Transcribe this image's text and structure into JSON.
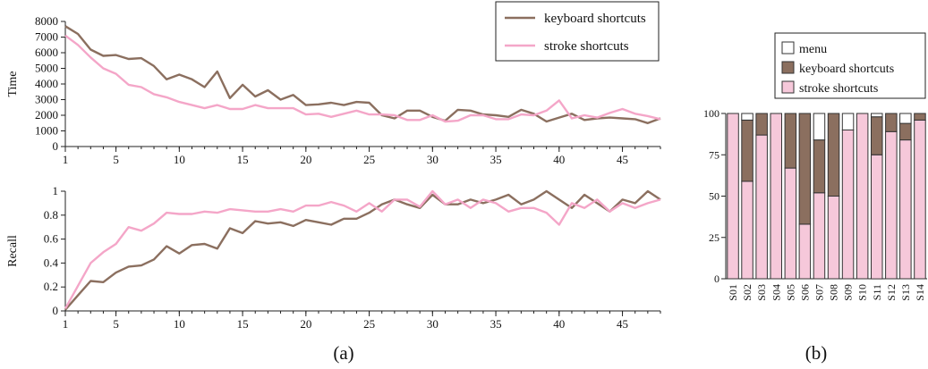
{
  "colors": {
    "keyboard": "#8b6f5f",
    "stroke": "#f4a6c8",
    "bar_stroke": "#f6c8da",
    "bar_keyboard": "#8b6f5f",
    "bar_menu": "#ffffff",
    "axis": "#222222"
  },
  "captions": {
    "a": "(a)",
    "b": "(b)"
  },
  "chart_data": [
    {
      "type": "line",
      "ylabel": "Time",
      "xlim": [
        1,
        48
      ],
      "ylim": [
        0,
        8000
      ],
      "xticks": [
        1,
        5,
        10,
        15,
        20,
        25,
        30,
        35,
        40,
        45
      ],
      "yticks": [
        0,
        1000,
        2000,
        3000,
        4000,
        5000,
        6000,
        7000,
        8000
      ],
      "legend": {
        "placement": "top-right",
        "entries": [
          "keyboard shortcuts",
          "stroke shortcuts"
        ]
      },
      "x": [
        1,
        2,
        3,
        4,
        5,
        6,
        7,
        8,
        9,
        10,
        11,
        12,
        13,
        14,
        15,
        16,
        17,
        18,
        19,
        20,
        21,
        22,
        23,
        24,
        25,
        26,
        27,
        28,
        29,
        30,
        31,
        32,
        33,
        34,
        35,
        36,
        37,
        38,
        39,
        40,
        41,
        42,
        43,
        44,
        45,
        46,
        47,
        48
      ],
      "series": [
        {
          "name": "keyboard shortcuts",
          "color": "#8b6f5f",
          "values": [
            7700,
            7200,
            6200,
            5800,
            5850,
            5600,
            5650,
            5150,
            4300,
            4600,
            4300,
            3800,
            4800,
            3100,
            3950,
            3200,
            3600,
            3000,
            3300,
            2650,
            2700,
            2800,
            2650,
            2850,
            2800,
            2000,
            1800,
            2300,
            2300,
            1900,
            1650,
            2350,
            2300,
            2050,
            2000,
            1900,
            2350,
            2100,
            1600,
            1850,
            2100,
            1700,
            1800,
            1850,
            1800,
            1750,
            1500,
            1800
          ]
        },
        {
          "name": "stroke shortcuts",
          "color": "#f4a6c8",
          "values": [
            7100,
            6500,
            5700,
            5000,
            4650,
            3950,
            3800,
            3350,
            3150,
            2850,
            2650,
            2450,
            2650,
            2400,
            2400,
            2650,
            2450,
            2450,
            2450,
            2050,
            2100,
            1900,
            2100,
            2300,
            2050,
            2050,
            2000,
            1700,
            1700,
            2000,
            1600,
            1650,
            2000,
            2000,
            1750,
            1750,
            2050,
            2000,
            2300,
            2950,
            1800,
            2000,
            1850,
            2150,
            2400,
            2100,
            1950,
            1750
          ]
        }
      ]
    },
    {
      "type": "line",
      "ylabel": "Recall",
      "xlim": [
        1,
        48
      ],
      "ylim": [
        0,
        1
      ],
      "xticks": [
        1,
        5,
        10,
        15,
        20,
        25,
        30,
        35,
        40,
        45
      ],
      "yticks": [
        "0",
        "0.2",
        "0.4",
        "0.6",
        "0.8",
        "1"
      ],
      "x": [
        1,
        2,
        3,
        4,
        5,
        6,
        7,
        8,
        9,
        10,
        11,
        12,
        13,
        14,
        15,
        16,
        17,
        18,
        19,
        20,
        21,
        22,
        23,
        24,
        25,
        26,
        27,
        28,
        29,
        30,
        31,
        32,
        33,
        34,
        35,
        36,
        37,
        38,
        39,
        40,
        41,
        42,
        43,
        44,
        45,
        46,
        47,
        48
      ],
      "series": [
        {
          "name": "keyboard shortcuts",
          "color": "#8b6f5f",
          "values": [
            0.01,
            0.13,
            0.25,
            0.24,
            0.32,
            0.37,
            0.38,
            0.43,
            0.54,
            0.48,
            0.55,
            0.56,
            0.52,
            0.69,
            0.65,
            0.75,
            0.73,
            0.74,
            0.71,
            0.76,
            0.74,
            0.72,
            0.77,
            0.77,
            0.82,
            0.89,
            0.93,
            0.89,
            0.86,
            0.97,
            0.89,
            0.89,
            0.93,
            0.9,
            0.93,
            0.97,
            0.89,
            0.93,
            1.0,
            0.93,
            0.86,
            0.97,
            0.9,
            0.83,
            0.93,
            0.9,
            1.0,
            0.93
          ]
        },
        {
          "name": "stroke shortcuts",
          "color": "#f4a6c8",
          "values": [
            0.02,
            0.21,
            0.4,
            0.49,
            0.56,
            0.7,
            0.67,
            0.73,
            0.82,
            0.81,
            0.81,
            0.83,
            0.82,
            0.85,
            0.84,
            0.83,
            0.83,
            0.85,
            0.83,
            0.88,
            0.88,
            0.91,
            0.88,
            0.83,
            0.9,
            0.83,
            0.93,
            0.93,
            0.87,
            1.0,
            0.89,
            0.93,
            0.86,
            0.93,
            0.9,
            0.83,
            0.86,
            0.86,
            0.82,
            0.72,
            0.9,
            0.86,
            0.93,
            0.83,
            0.9,
            0.86,
            0.9,
            0.93
          ]
        }
      ]
    },
    {
      "type": "bar",
      "stacked": true,
      "categories": [
        "S01",
        "S02",
        "S03",
        "S04",
        "S05",
        "S06",
        "S07",
        "S08",
        "S09",
        "S10",
        "S11",
        "S12",
        "S13",
        "S14"
      ],
      "ylim": [
        0,
        100
      ],
      "yticks": [
        0,
        25,
        50,
        75,
        100
      ],
      "legend": {
        "placement": "top",
        "entries": [
          "menu",
          "keyboard shortcuts",
          "stroke shortcuts"
        ]
      },
      "series": [
        {
          "name": "stroke shortcuts",
          "color": "#f6c8da",
          "values": [
            100,
            59,
            87,
            100,
            67,
            33,
            52,
            50,
            90,
            100,
            75,
            89,
            84,
            96
          ]
        },
        {
          "name": "keyboard shortcuts",
          "color": "#8b6f5f",
          "values": [
            0,
            37,
            13,
            0,
            33,
            67,
            32,
            50,
            0,
            0,
            23,
            11,
            10,
            4
          ]
        },
        {
          "name": "menu",
          "color": "#ffffff",
          "values": [
            0,
            4,
            0,
            0,
            0,
            0,
            16,
            0,
            10,
            0,
            2,
            0,
            6,
            0
          ]
        }
      ]
    }
  ]
}
